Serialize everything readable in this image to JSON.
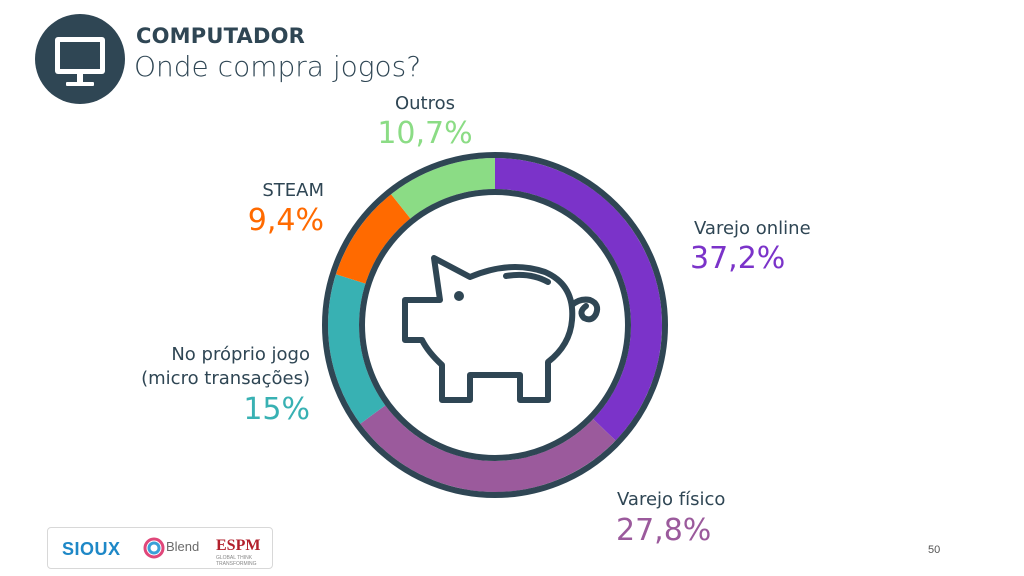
{
  "header": {
    "category": "COMPUTADOR",
    "title": "Onde compra jogos?",
    "icon": "computer-monitor-icon"
  },
  "chart_data": {
    "type": "pie",
    "style": "donut",
    "title": "Onde compra jogos?",
    "center_icon": "piggy-bank-icon",
    "slices": [
      {
        "label": "Varejo online",
        "value": 37.2,
        "display": "37,2%",
        "color": "#7b33c9"
      },
      {
        "label": "Varejo físico",
        "value": 27.8,
        "display": "27,8%",
        "color": "#9b5a9c"
      },
      {
        "label": "No próprio jogo",
        "label_line2": "(micro transações)",
        "value": 15.0,
        "display": "15%",
        "color": "#38b1b3"
      },
      {
        "label": "STEAM",
        "value": 9.4,
        "display": "9,4%",
        "color": "#ff6a00"
      },
      {
        "label": "Outros",
        "value": 10.7,
        "display": "10,7%",
        "color": "#8bdc85"
      }
    ],
    "start": "top, clockwise"
  },
  "footer": {
    "logo_sioux": "SIOUX",
    "logo_blend": "Blend",
    "logo_espm": "ESPM",
    "logo_espm_sub": "GLOBAL THINK TRANSFORMING",
    "page_number": "50"
  },
  "colors": {
    "text": "#2f4654",
    "ring_outline": "#2f4654"
  }
}
